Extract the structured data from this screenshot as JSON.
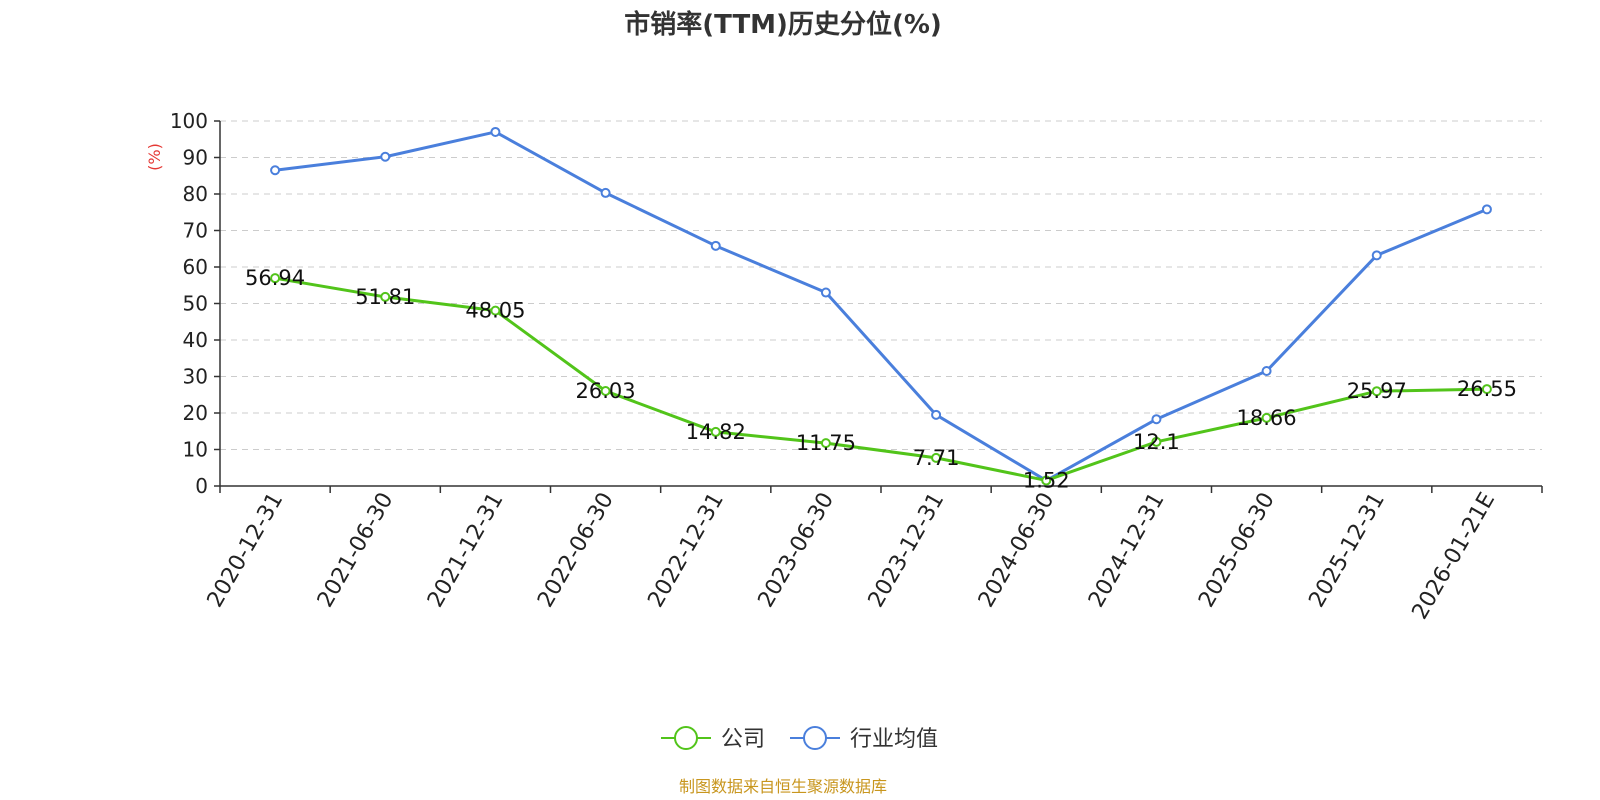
{
  "chart_data": {
    "type": "line",
    "title": "市销率(TTM)历史分位(%)",
    "ylabel": "(%)",
    "xlabel": "",
    "ylim": [
      0,
      100
    ],
    "yticks": [
      0,
      10,
      20,
      30,
      40,
      50,
      60,
      70,
      80,
      90,
      100
    ],
    "grid": true,
    "legend_position": "bottom-center",
    "categories": [
      "2020-12-31",
      "2021-06-30",
      "2021-12-31",
      "2022-06-30",
      "2022-12-31",
      "2023-06-30",
      "2023-12-31",
      "2024-06-30",
      "2024-12-31",
      "2025-06-30",
      "2025-12-31",
      "2026-01-21E"
    ],
    "series": [
      {
        "name": "公司",
        "color": "#52c41a",
        "values": [
          56.94,
          51.81,
          48.05,
          26.03,
          14.82,
          11.75,
          7.71,
          1.52,
          12.1,
          18.66,
          25.97,
          26.55
        ],
        "labels": [
          "56.94",
          "51.81",
          "48.05",
          "26.03",
          "14.82",
          "11.75",
          "7.71",
          "1.52",
          "12.1",
          "18.66",
          "25.97",
          "26.55"
        ]
      },
      {
        "name": "行业均值",
        "color": "#4a7fdc",
        "values": [
          86.5,
          90.2,
          97.0,
          80.3,
          65.8,
          53.0,
          19.5,
          1.5,
          18.3,
          31.5,
          63.2,
          75.8
        ]
      }
    ]
  },
  "footer": {
    "source": "制图数据来自恒生聚源数据库"
  },
  "colors": {
    "unit_label": "#e53935",
    "source_text": "#c8961e",
    "grid": "#cccccc",
    "axis": "#333333"
  }
}
